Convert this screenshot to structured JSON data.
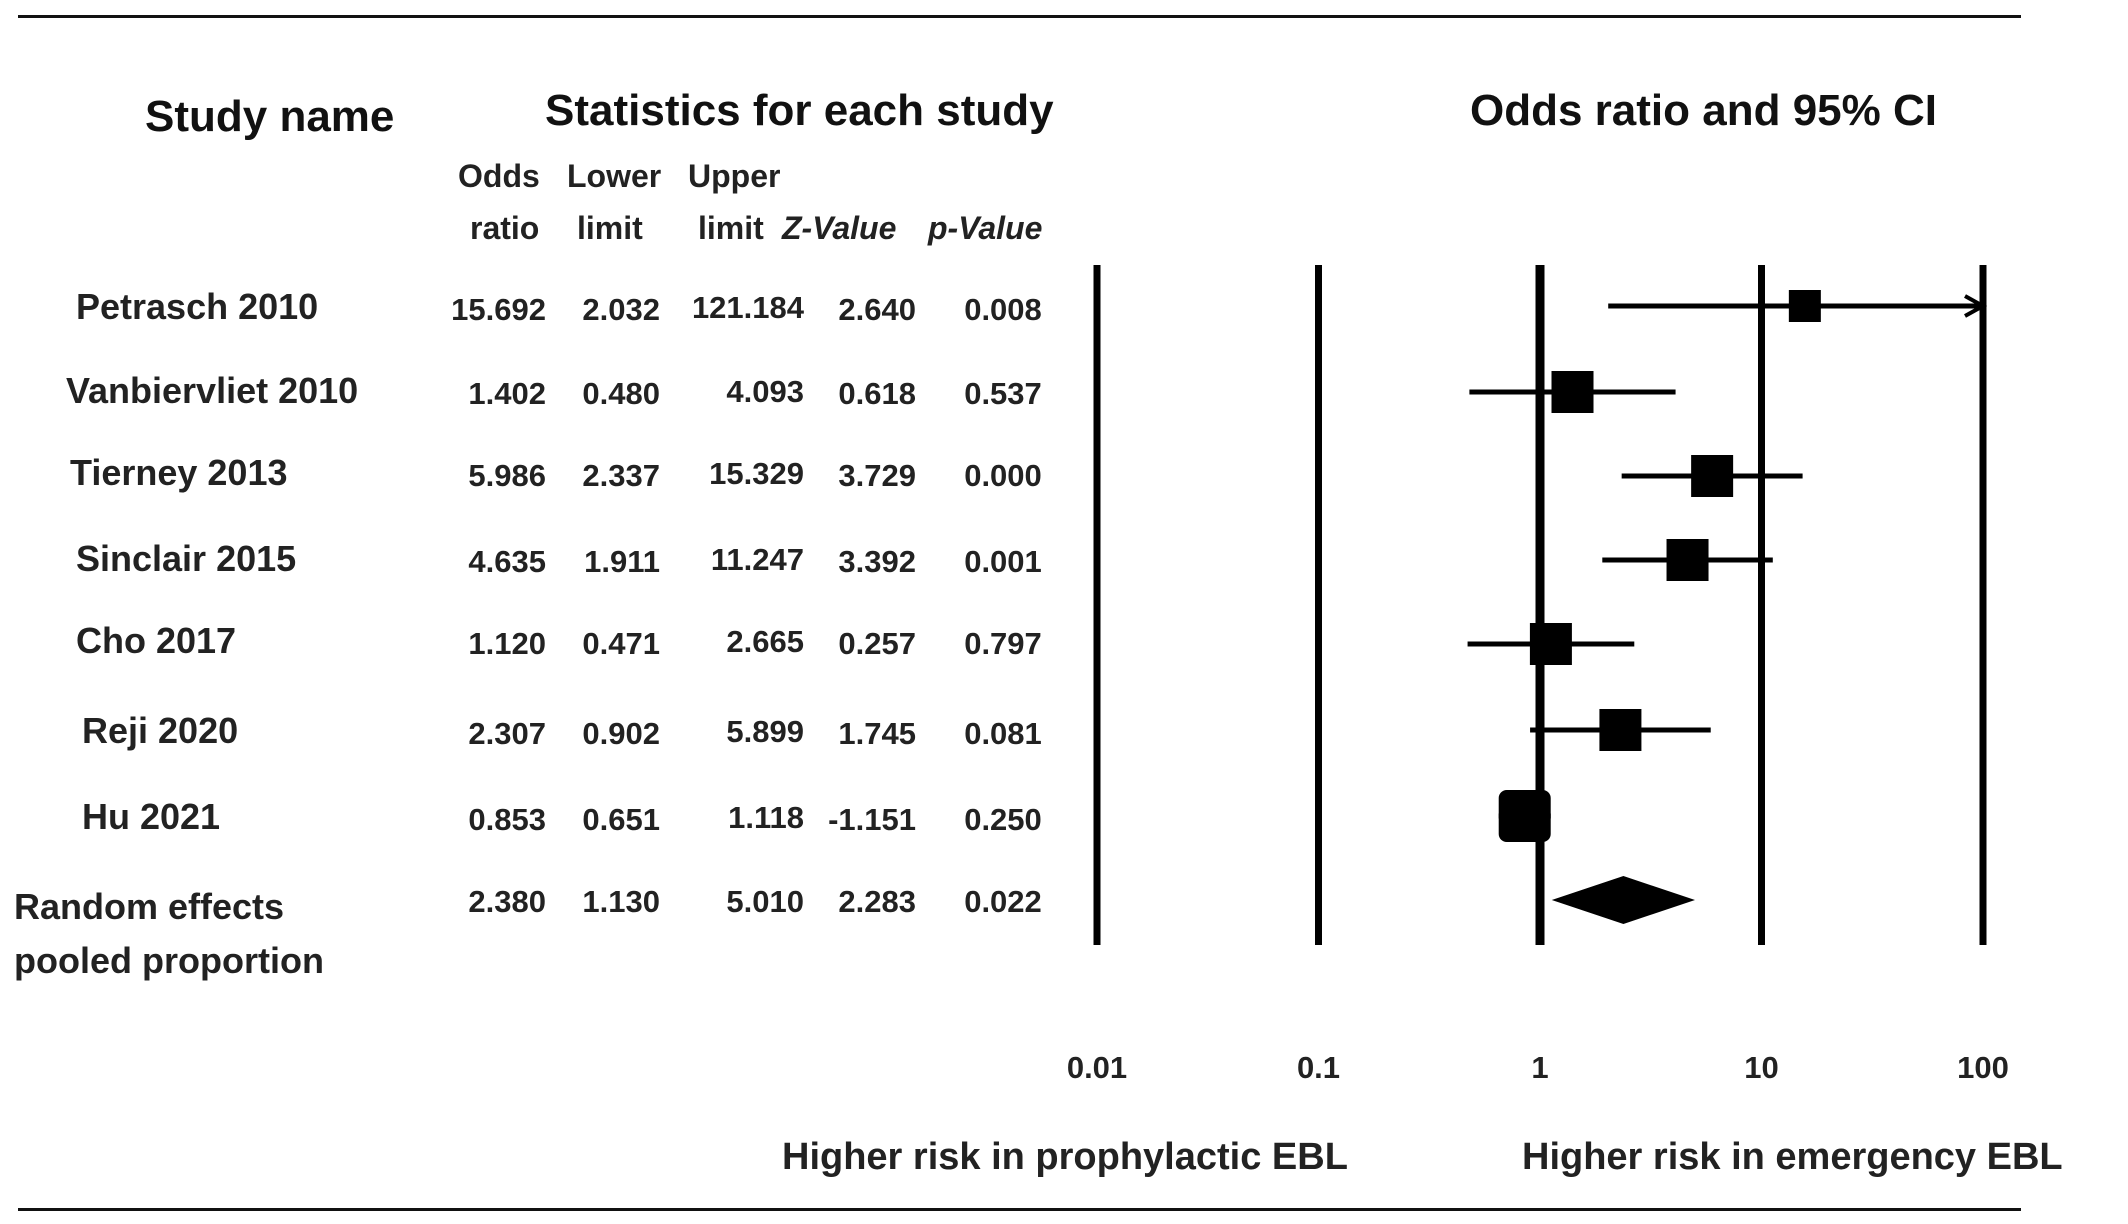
{
  "headers": {
    "study_name": "Study name",
    "statistics": "Statistics for each study",
    "plot_title": "Odds ratio and 95% CI",
    "col_or_1": "Odds",
    "col_or_2": "ratio",
    "col_lower_1": "Lower",
    "col_lower_2": "limit",
    "col_upper_1": "Upper",
    "col_upper_2": "limit",
    "col_z": "Z-Value",
    "col_p": "p-Value"
  },
  "rows": [
    {
      "name": "Petrasch 2010",
      "or": "15.692",
      "lower": "2.032",
      "upper": "121.184",
      "z": "2.640",
      "p": "0.008"
    },
    {
      "name": "Vanbiervliet 2010",
      "or": "1.402",
      "lower": "0.480",
      "upper": "4.093",
      "z": "0.618",
      "p": "0.537"
    },
    {
      "name": "Tierney 2013",
      "or": "5.986",
      "lower": "2.337",
      "upper": "15.329",
      "z": "3.729",
      "p": "0.000"
    },
    {
      "name": "Sinclair 2015",
      "or": "4.635",
      "lower": "1.911",
      "upper": "11.247",
      "z": "3.392",
      "p": "0.001"
    },
    {
      "name": "Cho 2017",
      "or": "1.120",
      "lower": "0.471",
      "upper": "2.665",
      "z": "0.257",
      "p": "0.797"
    },
    {
      "name": "Reji 2020",
      "or": "2.307",
      "lower": "0.902",
      "upper": "5.899",
      "z": "1.745",
      "p": "0.081"
    },
    {
      "name": "Hu 2021",
      "or": "0.853",
      "lower": "0.651",
      "upper": "1.118",
      "z": "-1.151",
      "p": "0.250"
    }
  ],
  "pooled": {
    "name_1": "Random effects",
    "name_2": "pooled proportion",
    "or": "2.380",
    "lower": "1.130",
    "upper": "5.010",
    "z": "2.283",
    "p": "0.022"
  },
  "axis": {
    "ticks": [
      "0.01",
      "0.1",
      "1",
      "10",
      "100"
    ],
    "left_label": "Higher risk in prophylactic EBL",
    "right_label": "Higher risk in emergency EBL"
  },
  "chart_data": {
    "type": "forest",
    "x_scale": "log",
    "xlim": [
      0.01,
      100
    ],
    "x_ticks": [
      0.01,
      0.1,
      1,
      10,
      100
    ],
    "title": "Odds ratio and 95% CI",
    "studies": [
      {
        "name": "Petrasch 2010",
        "or": 15.692,
        "lower": 2.032,
        "upper": 121.184,
        "z": 2.64,
        "p": 0.008,
        "weight": 1
      },
      {
        "name": "Vanbiervliet 2010",
        "or": 1.402,
        "lower": 0.48,
        "upper": 4.093,
        "z": 0.618,
        "p": 0.537,
        "weight": 2
      },
      {
        "name": "Tierney 2013",
        "or": 5.986,
        "lower": 2.337,
        "upper": 15.329,
        "z": 3.729,
        "p": 0.0,
        "weight": 2
      },
      {
        "name": "Sinclair 2015",
        "or": 4.635,
        "lower": 1.911,
        "upper": 11.247,
        "z": 3.392,
        "p": 0.001,
        "weight": 2
      },
      {
        "name": "Cho 2017",
        "or": 1.12,
        "lower": 0.471,
        "upper": 2.665,
        "z": 0.257,
        "p": 0.797,
        "weight": 2
      },
      {
        "name": "Reji 2020",
        "or": 2.307,
        "lower": 0.902,
        "upper": 5.899,
        "z": 1.745,
        "p": 0.081,
        "weight": 2
      },
      {
        "name": "Hu 2021",
        "or": 0.853,
        "lower": 0.651,
        "upper": 1.118,
        "z": -1.151,
        "p": 0.25,
        "weight": 3
      }
    ],
    "pooled": {
      "name": "Random effects pooled proportion",
      "or": 2.38,
      "lower": 1.13,
      "upper": 5.01,
      "z": 2.283,
      "p": 0.022
    },
    "direction_labels": [
      "Higher risk in prophylactic EBL",
      "Higher risk in emergency EBL"
    ]
  }
}
